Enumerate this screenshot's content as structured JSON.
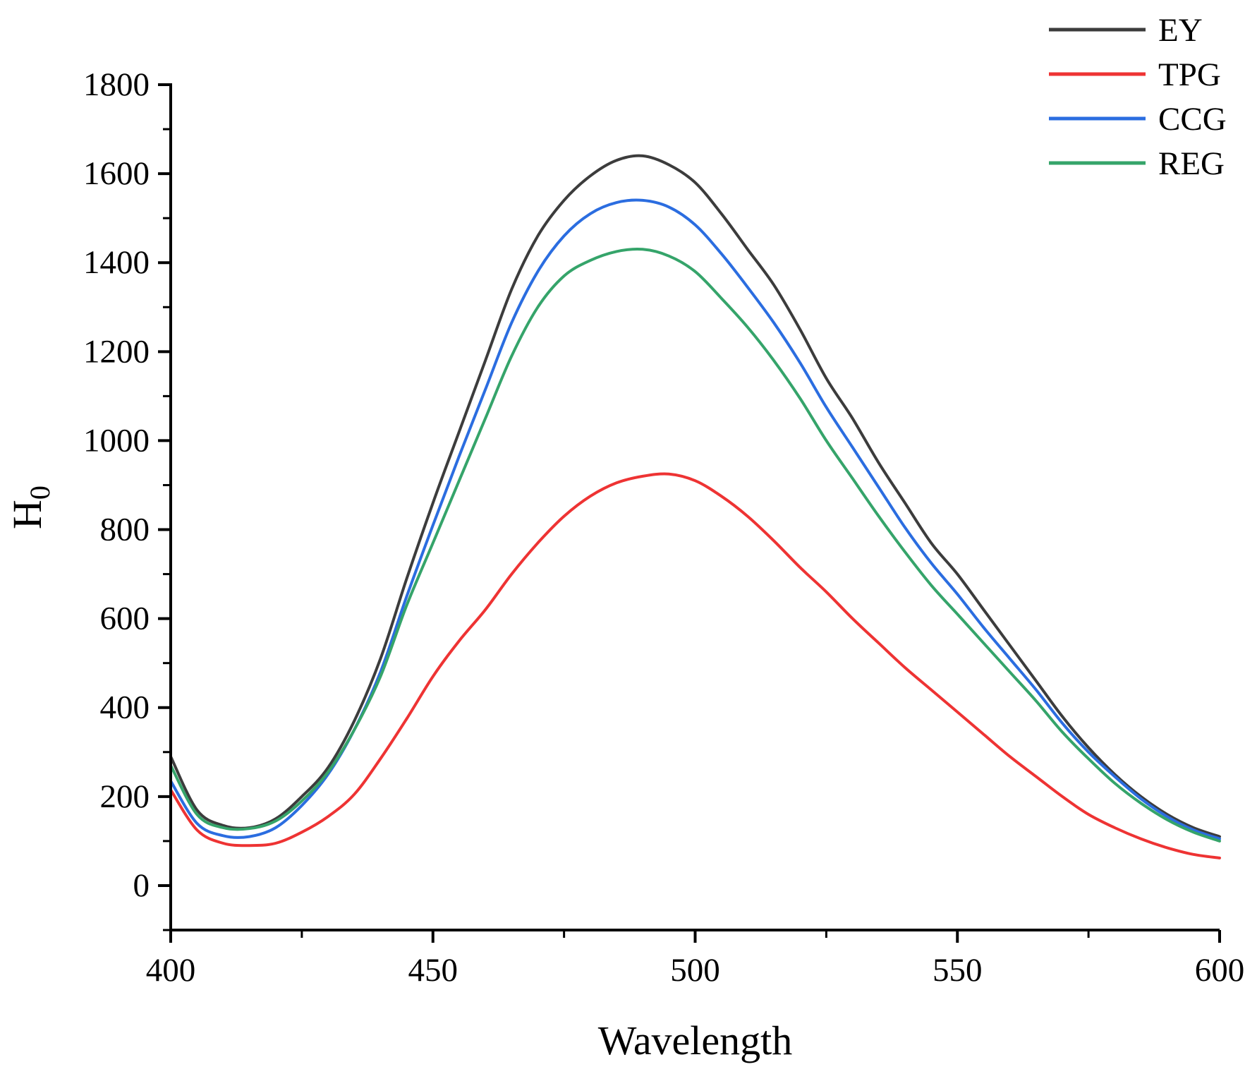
{
  "chart_data": {
    "type": "line",
    "title": "",
    "xlabel": "Wavelength",
    "ylabel": "H",
    "ylabel_subscript": "0",
    "xlim": [
      400,
      600
    ],
    "ylim": [
      -100,
      1800
    ],
    "xticks": [
      400,
      450,
      500,
      550,
      600
    ],
    "yticks": [
      0,
      200,
      400,
      600,
      800,
      1000,
      1200,
      1400,
      1600,
      1800
    ],
    "grid": false,
    "legend_position": "top-right",
    "x": [
      400,
      405,
      410,
      415,
      420,
      425,
      430,
      435,
      440,
      445,
      450,
      455,
      460,
      465,
      470,
      475,
      480,
      485,
      490,
      495,
      500,
      505,
      510,
      515,
      520,
      525,
      530,
      535,
      540,
      545,
      550,
      555,
      560,
      565,
      570,
      575,
      580,
      585,
      590,
      595,
      600
    ],
    "series": [
      {
        "name": "EY",
        "color": "#3c3c3c",
        "values": [
          290,
          170,
          135,
          130,
          150,
          200,
          265,
          370,
          510,
          690,
          860,
          1020,
          1180,
          1340,
          1460,
          1540,
          1595,
          1630,
          1640,
          1620,
          1580,
          1510,
          1430,
          1350,
          1250,
          1140,
          1050,
          950,
          860,
          770,
          700,
          620,
          540,
          460,
          380,
          310,
          250,
          200,
          160,
          130,
          110
        ]
      },
      {
        "name": "TPG",
        "color": "#ee3333",
        "values": [
          215,
          125,
          95,
          90,
          95,
          120,
          155,
          205,
          285,
          375,
          470,
          550,
          620,
          700,
          770,
          830,
          875,
          905,
          920,
          925,
          910,
          875,
          830,
          775,
          715,
          660,
          600,
          545,
          490,
          440,
          390,
          340,
          290,
          245,
          200,
          160,
          130,
          105,
          85,
          70,
          62
        ]
      },
      {
        "name": "CCG",
        "color": "#2b6de0",
        "values": [
          235,
          140,
          112,
          110,
          130,
          180,
          250,
          350,
          480,
          650,
          810,
          965,
          1115,
          1265,
          1380,
          1460,
          1510,
          1535,
          1540,
          1525,
          1485,
          1420,
          1345,
          1265,
          1175,
          1075,
          985,
          895,
          805,
          725,
          655,
          580,
          510,
          440,
          365,
          300,
          245,
          195,
          155,
          125,
          105
        ]
      },
      {
        "name": "REG",
        "color": "#35a46a",
        "values": [
          270,
          160,
          130,
          128,
          145,
          190,
          255,
          350,
          470,
          630,
          770,
          910,
          1050,
          1190,
          1300,
          1370,
          1405,
          1425,
          1430,
          1415,
          1380,
          1320,
          1255,
          1180,
          1095,
          1000,
          915,
          830,
          750,
          675,
          610,
          545,
          480,
          415,
          345,
          285,
          230,
          185,
          148,
          120,
          100
        ]
      }
    ]
  }
}
